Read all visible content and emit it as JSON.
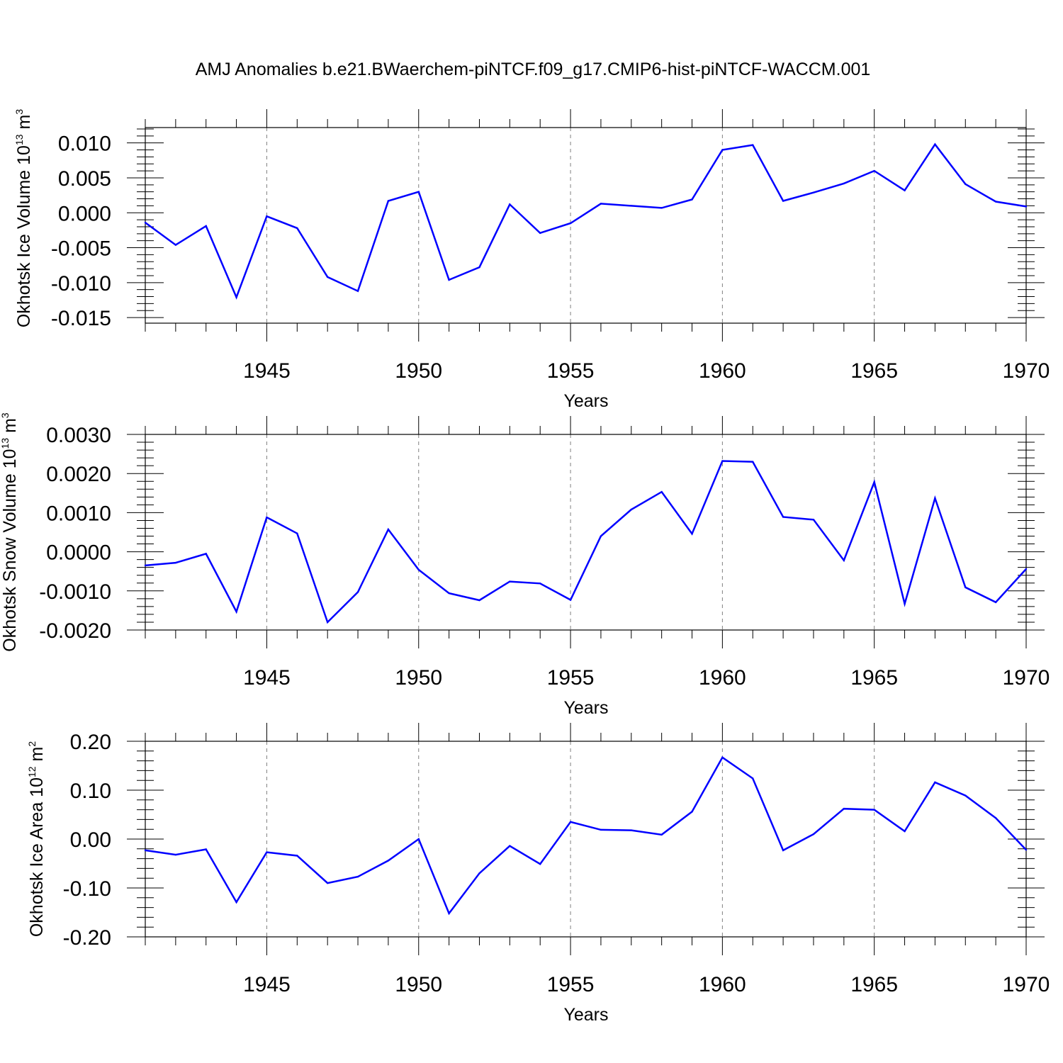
{
  "figure": {
    "title": "AMJ Anomalies b.e21.BWaerchem-piNTCF.f09_g17.CMIP6-hist-piNTCF-WACCM.001"
  },
  "style": {
    "line_color": "#0000ff",
    "grid_color": "#808080",
    "axis_color": "#000000"
  },
  "chart_data": [
    {
      "type": "line",
      "title": "AMJ Anomalies b.e21.BWaerchem-piNTCF.f09_g17.CMIP6-hist-piNTCF-WACCM.001",
      "xlabel": "Years",
      "ylabel": {
        "text": "Okhotsk Ice Volume 10",
        "sup": "13",
        "unit": " m",
        "unit_sup": "3"
      },
      "xlim": [
        1941,
        1970
      ],
      "ylim": [
        -0.0158,
        0.0122
      ],
      "x_ticks": [
        1945,
        1950,
        1955,
        1960,
        1965,
        1970
      ],
      "x_tick_labels": [
        "1945",
        "1950",
        "1955",
        "1960",
        "1965",
        "1970"
      ],
      "y_ticks": [
        0.01,
        0.005,
        0.0,
        -0.005,
        -0.01,
        -0.015
      ],
      "y_tick_labels": [
        "0.010",
        "0.005",
        "0.000",
        "-0.005",
        "-0.010",
        "-0.015"
      ],
      "y_minor_step": 0.001,
      "grid": "x dashed at major ticks",
      "x": [
        1941,
        1942,
        1943,
        1944,
        1945,
        1946,
        1947,
        1948,
        1949,
        1950,
        1951,
        1952,
        1953,
        1954,
        1955,
        1956,
        1957,
        1958,
        1959,
        1960,
        1961,
        1962,
        1963,
        1964,
        1965,
        1966,
        1967,
        1968,
        1969,
        1970
      ],
      "y": [
        -0.0014,
        -0.0046,
        -0.0019,
        -0.0121,
        -0.0005,
        -0.0022,
        -0.0092,
        -0.0112,
        0.0017,
        0.003,
        -0.0096,
        -0.0078,
        0.0012,
        -0.0029,
        -0.0015,
        0.0013,
        0.001,
        0.0007,
        0.0019,
        0.009,
        0.0097,
        0.0017,
        0.0029,
        0.0042,
        0.006,
        0.0032,
        0.0098,
        0.0041,
        0.0016,
        0.0009
      ]
    },
    {
      "type": "line",
      "xlabel": "Years",
      "ylabel": {
        "text": "Okhotsk Snow Volume 10",
        "sup": "13",
        "unit": " m",
        "unit_sup": "3"
      },
      "xlim": [
        1941,
        1970
      ],
      "ylim": [
        -0.002,
        0.003
      ],
      "x_ticks": [
        1945,
        1950,
        1955,
        1960,
        1965,
        1970
      ],
      "x_tick_labels": [
        "1945",
        "1950",
        "1955",
        "1960",
        "1965",
        "1970"
      ],
      "y_ticks": [
        0.003,
        0.002,
        0.001,
        0.0,
        -0.001,
        -0.002
      ],
      "y_tick_labels": [
        "0.0030",
        "0.0020",
        "0.0010",
        "0.0000",
        "-0.0010",
        "-0.0020"
      ],
      "y_minor_step": 0.0002,
      "grid": "x dashed at major ticks",
      "x": [
        1941,
        1942,
        1943,
        1944,
        1945,
        1946,
        1947,
        1948,
        1949,
        1950,
        1951,
        1952,
        1953,
        1954,
        1955,
        1956,
        1957,
        1958,
        1959,
        1960,
        1961,
        1962,
        1963,
        1964,
        1965,
        1966,
        1967,
        1968,
        1969,
        1970
      ],
      "y": [
        -0.00035,
        -0.00028,
        -5e-05,
        -0.00153,
        0.00088,
        0.00047,
        -0.0018,
        -0.00103,
        0.00057,
        -0.00046,
        -0.00106,
        -0.00124,
        -0.00076,
        -0.00081,
        -0.00123,
        0.0004,
        0.00108,
        0.00153,
        0.00046,
        0.00232,
        0.0023,
        0.00089,
        0.00082,
        -0.00022,
        0.00178,
        -0.00133,
        0.00137,
        -0.00091,
        -0.00129,
        -0.00044
      ]
    },
    {
      "type": "line",
      "xlabel": "Years",
      "ylabel": {
        "text": "Okhotsk Ice Area 10",
        "sup": "12",
        "unit": " m",
        "unit_sup": "2"
      },
      "xlim": [
        1941,
        1970
      ],
      "ylim": [
        -0.2,
        0.2
      ],
      "x_ticks": [
        1945,
        1950,
        1955,
        1960,
        1965,
        1970
      ],
      "x_tick_labels": [
        "1945",
        "1950",
        "1955",
        "1960",
        "1965",
        "1970"
      ],
      "y_ticks": [
        0.2,
        0.1,
        0.0,
        -0.1,
        -0.2
      ],
      "y_tick_labels": [
        "0.20",
        "0.10",
        "0.00",
        "-0.10",
        "-0.20"
      ],
      "y_minor_step": 0.02,
      "grid": "x dashed at major ticks",
      "x": [
        1941,
        1942,
        1943,
        1944,
        1945,
        1946,
        1947,
        1948,
        1949,
        1950,
        1951,
        1952,
        1953,
        1954,
        1955,
        1956,
        1957,
        1958,
        1959,
        1960,
        1961,
        1962,
        1963,
        1964,
        1965,
        1966,
        1967,
        1968,
        1969,
        1970
      ],
      "y": [
        -0.023,
        -0.032,
        -0.021,
        -0.129,
        -0.027,
        -0.034,
        -0.09,
        -0.077,
        -0.044,
        0.0,
        -0.152,
        -0.07,
        -0.014,
        -0.051,
        0.035,
        0.019,
        0.018,
        0.009,
        0.056,
        0.167,
        0.124,
        -0.023,
        0.01,
        0.062,
        0.06,
        0.016,
        0.116,
        0.089,
        0.043,
        -0.022
      ]
    }
  ]
}
